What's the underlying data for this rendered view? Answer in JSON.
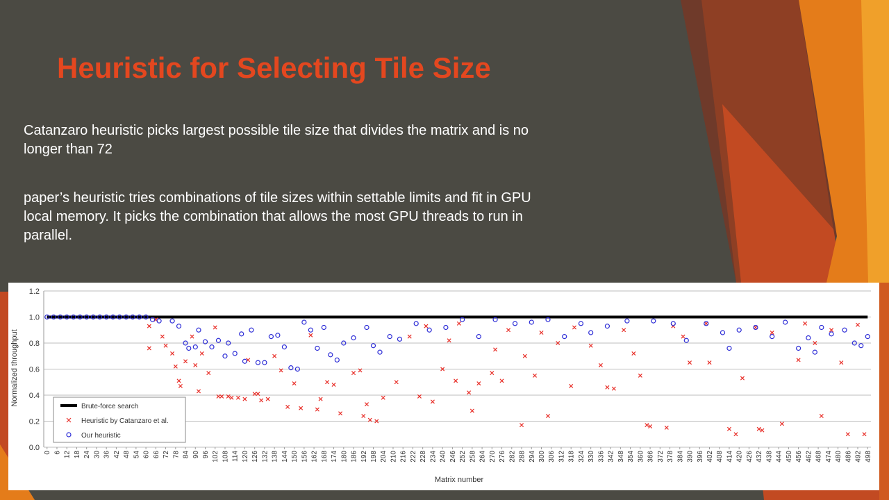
{
  "title": "Heuristic for Selecting Tile Size",
  "paragraphs": [
    "Catanzaro heuristic picks largest possible tile size that divides the matrix and is no longer than 72",
    "paper’s heuristic tries combinations of tile sizes within settable limits and fit in GPU local memory. It picks the combination that allows the most GPU threads to run in parallel."
  ],
  "chart_data": {
    "type": "scatter",
    "xlabel": "Matrix number",
    "ylabel": "Normalized throughput",
    "xlim": [
      -2,
      500
    ],
    "ylim": [
      0,
      1.2
    ],
    "xticks": [
      0,
      6,
      12,
      18,
      24,
      30,
      36,
      42,
      48,
      54,
      60,
      66,
      72,
      78,
      84,
      90,
      96,
      102,
      108,
      114,
      120,
      126,
      132,
      138,
      144,
      150,
      156,
      162,
      168,
      174,
      180,
      186,
      192,
      198,
      204,
      210,
      216,
      222,
      228,
      234,
      240,
      246,
      252,
      258,
      264,
      270,
      276,
      282,
      288,
      294,
      300,
      306,
      312,
      318,
      324,
      330,
      336,
      342,
      348,
      354,
      360,
      366,
      372,
      378,
      384,
      390,
      396,
      402,
      408,
      414,
      420,
      426,
      432,
      438,
      444,
      450,
      456,
      462,
      468,
      474,
      480,
      486,
      492,
      498
    ],
    "yticks": [
      {
        "value": 0,
        "label": "0.0"
      },
      0.2,
      0.4,
      0.6,
      0.8,
      {
        "value": 1,
        "label": "1.0"
      },
      1.2
    ],
    "grid": true,
    "legend": "lower left",
    "series": [
      {
        "name": "Brute-force search",
        "color": "#000000",
        "marker": "line",
        "x": [
          0,
          498
        ],
        "values": [
          1,
          1
        ]
      },
      {
        "name": "Heuristic by Catanzaro et al.",
        "color": "#e8302a",
        "marker": "x",
        "x": [
          62,
          62,
          66,
          70,
          72,
          76,
          78,
          80,
          81,
          84,
          88,
          90,
          92,
          94,
          98,
          102,
          104,
          106,
          110,
          112,
          116,
          120,
          122,
          126,
          128,
          130,
          134,
          138,
          142,
          146,
          150,
          154,
          160,
          164,
          166,
          170,
          174,
          178,
          186,
          190,
          192,
          194,
          196,
          200,
          204,
          212,
          220,
          226,
          230,
          234,
          240,
          244,
          248,
          250,
          256,
          258,
          262,
          270,
          272,
          276,
          280,
          288,
          290,
          296,
          300,
          304,
          310,
          318,
          320,
          330,
          336,
          340,
          344,
          350,
          356,
          360,
          364,
          366,
          376,
          380,
          386,
          390,
          400,
          402,
          414,
          418,
          422,
          430,
          432,
          434,
          440,
          446,
          456,
          460,
          466,
          470,
          476,
          482,
          486,
          492,
          496
        ],
        "values": [
          0.93,
          0.76,
          0.98,
          0.85,
          0.78,
          0.72,
          0.62,
          0.51,
          0.47,
          0.66,
          0.85,
          0.63,
          0.43,
          0.72,
          0.57,
          0.92,
          0.39,
          0.39,
          0.39,
          0.38,
          0.38,
          0.37,
          0.67,
          0.41,
          0.41,
          0.36,
          0.37,
          0.7,
          0.59,
          0.31,
          0.49,
          0.3,
          0.86,
          0.29,
          0.37,
          0.5,
          0.48,
          0.26,
          0.57,
          0.59,
          0.24,
          0.33,
          0.21,
          0.2,
          0.38,
          0.5,
          0.85,
          0.39,
          0.93,
          0.35,
          0.6,
          0.82,
          0.51,
          0.95,
          0.42,
          0.28,
          0.49,
          0.57,
          0.75,
          0.51,
          0.9,
          0.17,
          0.7,
          0.55,
          0.88,
          0.24,
          0.8,
          0.47,
          0.92,
          0.78,
          0.63,
          0.46,
          0.45,
          0.9,
          0.72,
          0.55,
          0.17,
          0.16,
          0.15,
          0.93,
          0.85,
          0.65,
          0.95,
          0.65,
          0.14,
          0.1,
          0.53,
          0.92,
          0.14,
          0.13,
          0.88,
          0.18,
          0.67,
          0.95,
          0.8,
          0.24,
          0.9,
          0.65,
          0.1,
          0.94,
          0.1
        ]
      },
      {
        "name": "Our heuristic",
        "color": "#2b2bd6",
        "marker": "o",
        "x": [
          0,
          4,
          8,
          12,
          16,
          20,
          24,
          28,
          32,
          36,
          40,
          44,
          48,
          52,
          56,
          60,
          64,
          68,
          76,
          80,
          84,
          86,
          90,
          92,
          96,
          100,
          104,
          108,
          110,
          114,
          118,
          120,
          124,
          128,
          132,
          136,
          140,
          144,
          148,
          152,
          156,
          160,
          164,
          168,
          172,
          176,
          180,
          186,
          194,
          198,
          202,
          208,
          214,
          224,
          232,
          242,
          252,
          262,
          272,
          284,
          294,
          304,
          314,
          324,
          330,
          340,
          352,
          368,
          380,
          388,
          400,
          410,
          414,
          420,
          430,
          440,
          448,
          456,
          462,
          466,
          470,
          476,
          484,
          490,
          494,
          498
        ],
        "values": [
          1,
          1,
          1,
          1,
          1,
          1,
          1,
          1,
          1,
          1,
          1,
          1,
          1,
          1,
          1,
          1,
          0.98,
          0.97,
          0.97,
          0.93,
          0.8,
          0.76,
          0.77,
          0.9,
          0.81,
          0.77,
          0.82,
          0.7,
          0.8,
          0.72,
          0.87,
          0.66,
          0.9,
          0.65,
          0.65,
          0.85,
          0.86,
          0.77,
          0.61,
          0.6,
          0.96,
          0.9,
          0.76,
          0.92,
          0.71,
          0.67,
          0.8,
          0.84,
          0.92,
          0.78,
          0.73,
          0.85,
          0.83,
          0.95,
          0.9,
          0.92,
          0.98,
          0.85,
          0.98,
          0.95,
          0.96,
          0.98,
          0.85,
          0.95,
          0.88,
          0.93,
          0.97,
          0.97,
          0.95,
          0.82,
          0.95,
          0.88,
          0.76,
          0.9,
          0.92,
          0.85,
          0.96,
          0.76,
          0.84,
          0.73,
          0.92,
          0.87,
          0.9,
          0.8,
          0.78,
          0.85
        ]
      }
    ]
  }
}
